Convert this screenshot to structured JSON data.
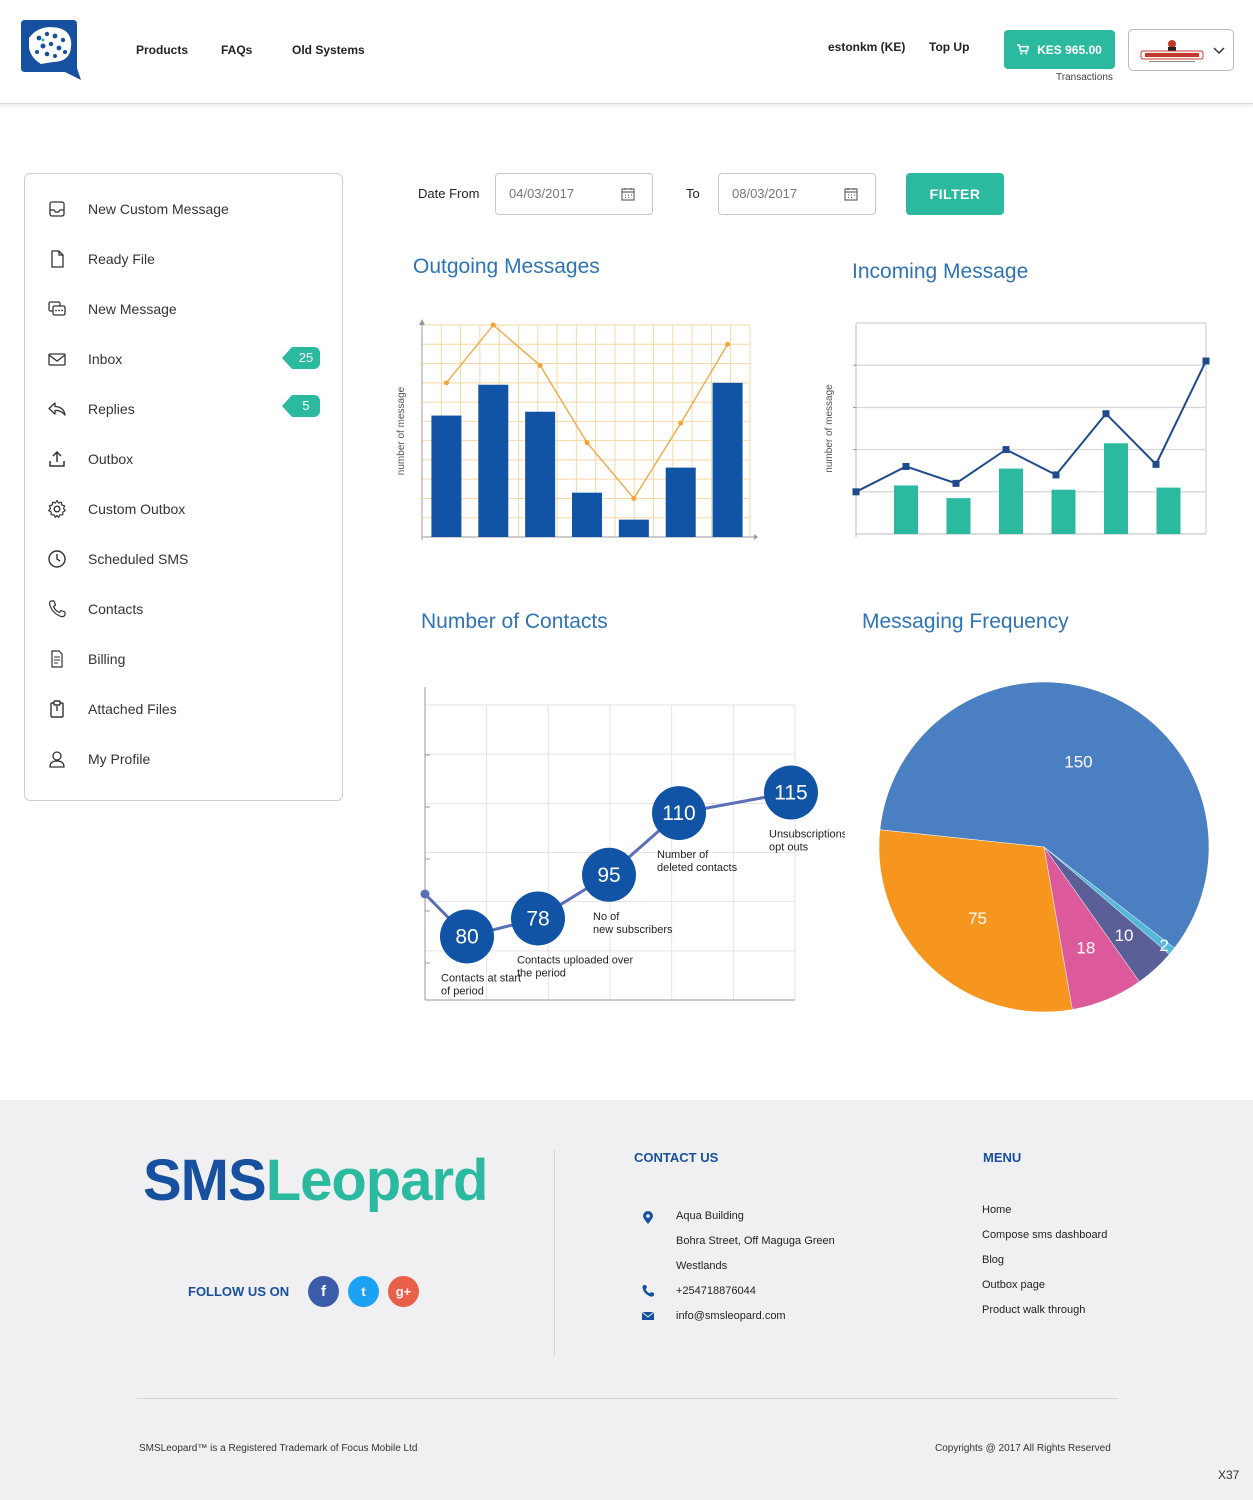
{
  "header": {
    "nav": [
      "Products",
      "FAQs",
      "Old Systems"
    ],
    "user": "estonkm (KE)",
    "topup": "Top Up",
    "balance": "KES 965.00",
    "transactions": "Transactions",
    "logo_icon": "leopard-speech-bubble-logo"
  },
  "sidebar": {
    "items": [
      {
        "label": "New Custom Message",
        "icon": "inbox-tray-icon"
      },
      {
        "label": "Ready File",
        "icon": "file-icon"
      },
      {
        "label": "New Message",
        "icon": "chat-bubbles-icon"
      },
      {
        "label": "Inbox",
        "icon": "envelope-icon",
        "badge": "25"
      },
      {
        "label": "Replies",
        "icon": "reply-icon",
        "badge": "5"
      },
      {
        "label": "Outbox",
        "icon": "upload-icon"
      },
      {
        "label": "Custom Outbox",
        "icon": "gear-icon"
      },
      {
        "label": "Scheduled SMS",
        "icon": "clock-icon"
      },
      {
        "label": "Contacts",
        "icon": "phone-icon"
      },
      {
        "label": "Billing",
        "icon": "document-icon"
      },
      {
        "label": "Attached Files",
        "icon": "clipboard-icon"
      },
      {
        "label": "My Profile",
        "icon": "user-icon"
      }
    ]
  },
  "filter": {
    "from_label": "Date From",
    "from_value": "04/03/2017",
    "to_label": "To",
    "to_value": "08/03/2017",
    "button": "FILTER"
  },
  "colors": {
    "teal": "#2bb9a0",
    "navy": "#17509e",
    "bar_blue": "#1153a4",
    "line_orange": "#f5a33a",
    "title_blue": "#2e74b5"
  },
  "chart_data": [
    {
      "type": "bar",
      "title": "Outgoing Messages",
      "ylabel": "number of message",
      "series": [
        {
          "values": [
            63,
            79,
            65,
            23,
            9,
            36,
            80
          ]
        },
        {
          "values": [
            80,
            110,
            89,
            49,
            20,
            59,
            100
          ]
        }
      ],
      "ylim": [
        0,
        110
      ],
      "grid": true
    },
    {
      "type": "bar",
      "title": "Incoming Message",
      "ylabel": "number of message",
      "series": [
        {
          "values": [
            23,
            17,
            31,
            21,
            43,
            22
          ]
        },
        {
          "values": [
            20,
            32,
            24,
            40,
            28,
            57,
            33,
            82
          ]
        }
      ],
      "ylim": [
        0,
        100
      ],
      "grid": true
    },
    {
      "type": "line",
      "title": "Number of Contacts",
      "points": [
        {
          "value": "80",
          "label": "Contacts at start of period"
        },
        {
          "value": "78",
          "label": "Contacts uploaded over the period"
        },
        {
          "value": "95",
          "label": "No of new subscribers"
        },
        {
          "value": "110",
          "label": "Number of deleted contacts"
        },
        {
          "value": "115",
          "label": "Unsubscriptions / opt outs"
        }
      ],
      "grid": true
    },
    {
      "type": "pie",
      "title": "Messaging Frequency",
      "slices": [
        {
          "value": 150,
          "color": "#4a7fc1"
        },
        {
          "value": 2,
          "color": "#55b8d9"
        },
        {
          "value": 10,
          "color": "#5a5f97"
        },
        {
          "value": 18,
          "color": "#dc5a9c"
        },
        {
          "value": 75,
          "color": "#f7961f"
        }
      ]
    }
  ],
  "footer": {
    "brand_a": "SMS",
    "brand_b": "Leopard",
    "follow": "FOLLOW US ON",
    "social": [
      "f",
      "t",
      "g+"
    ],
    "contact_head": "CONTACT US",
    "address": [
      "Aqua Building",
      "Bohra Street, Off Maguga Green",
      "Westlands"
    ],
    "phone": "+254718876044",
    "email": "info@smsleopard.com",
    "menu_head": "MENU",
    "menu": [
      "Home",
      "Compose sms dashboard",
      "Blog",
      "Outbox page",
      "Product walk through"
    ],
    "trademark": "SMSLeopard™ is a Registered Trademark of Focus Mobile Ltd",
    "copyright": "Copyrights @ 2017 All Rights Reserved",
    "corner": "X37"
  }
}
